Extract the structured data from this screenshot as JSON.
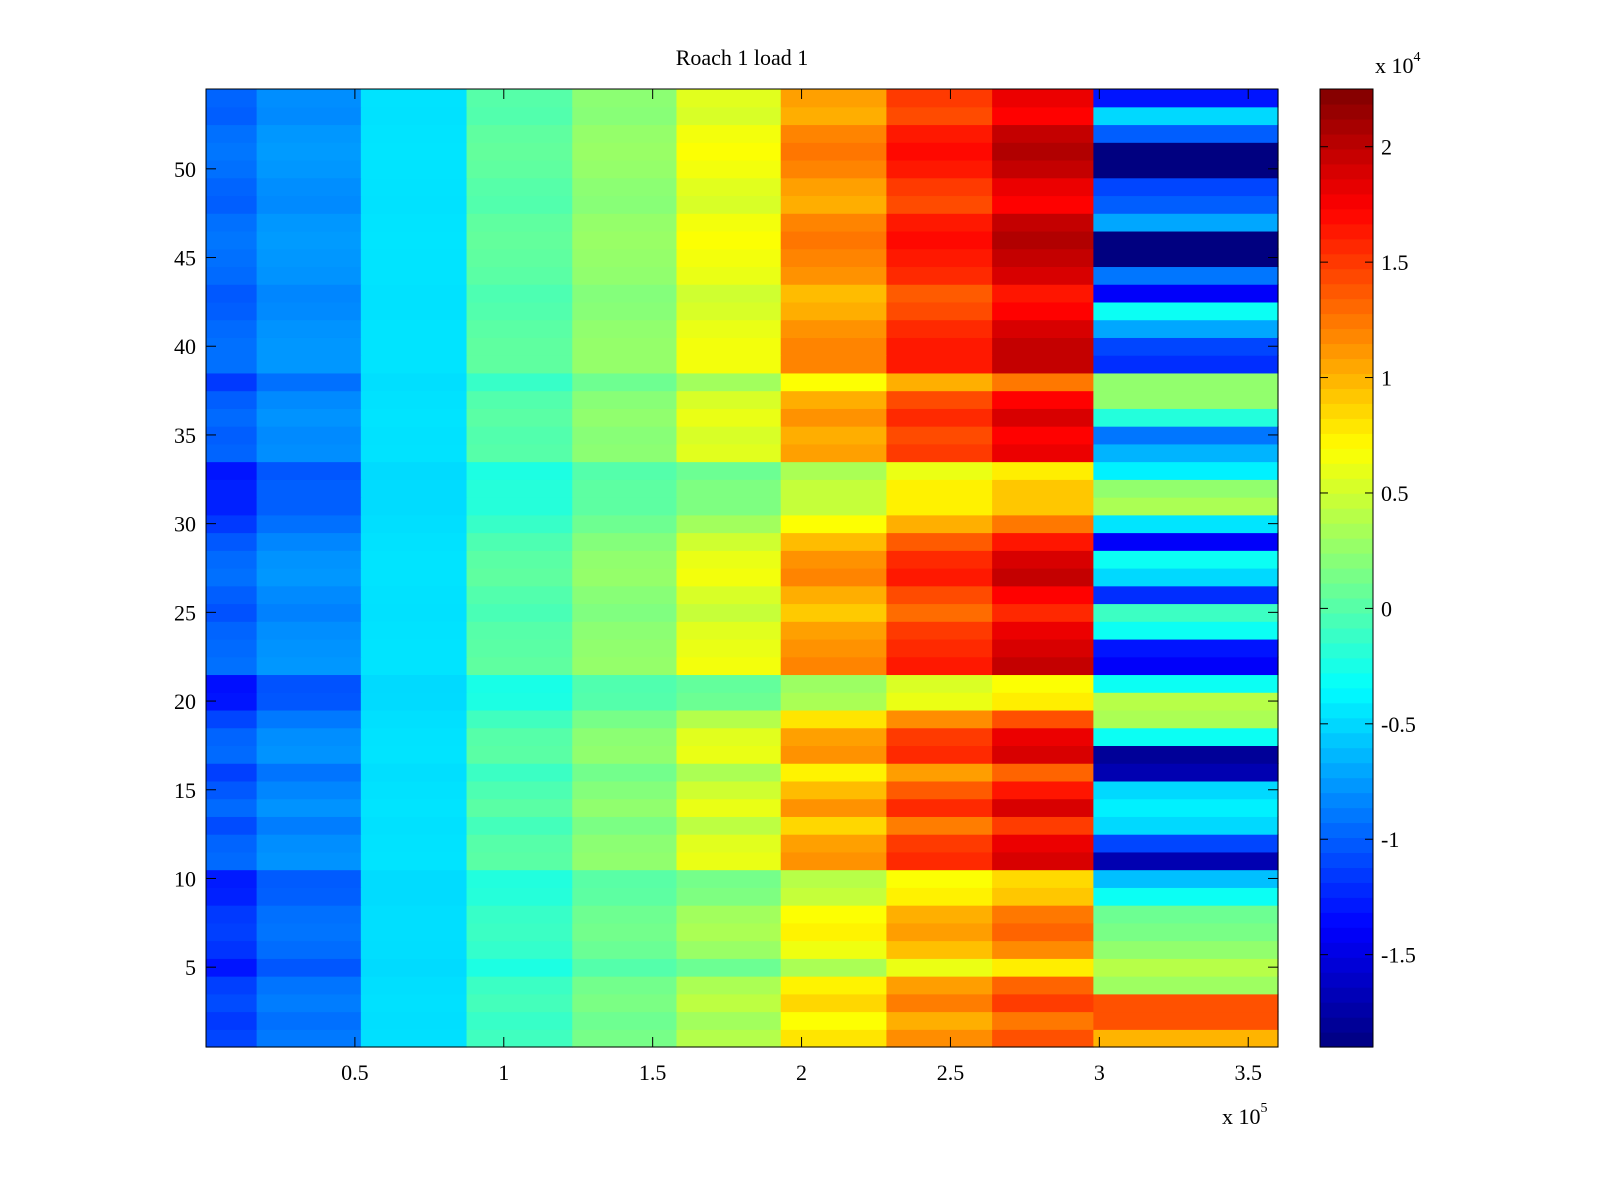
{
  "chart_data": {
    "type": "heatmap",
    "title": "Roach 1 load 1",
    "xlabel": "",
    "ylabel": "",
    "x_multiplier": {
      "base": "x 10",
      "exponent": "5"
    },
    "xlim": [
      0,
      360000
    ],
    "ylim": [
      0.5,
      54.5
    ],
    "x_ticks": [
      50000,
      100000,
      150000,
      200000,
      250000,
      300000,
      350000
    ],
    "x_tick_labels": [
      "0.5",
      "1",
      "1.5",
      "2",
      "2.5",
      "3",
      "3.5"
    ],
    "y_ticks": [
      5,
      10,
      15,
      20,
      25,
      30,
      35,
      40,
      45,
      50
    ],
    "y_tick_labels": [
      "5",
      "10",
      "15",
      "20",
      "25",
      "30",
      "35",
      "40",
      "45",
      "50"
    ],
    "colormap": "jet",
    "colorbar": {
      "clim": [
        -19000,
        22500
      ],
      "multiplier": {
        "base": "x 10",
        "exponent": "4"
      },
      "ticks": [
        -15000,
        -10000,
        -5000,
        0,
        5000,
        10000,
        15000,
        20000
      ],
      "tick_labels": [
        "-1.5",
        "-1",
        "-0.5",
        "0",
        "0.5",
        "1",
        "1.5",
        "2"
      ]
    },
    "x_segments": [
      {
        "x_start": 0,
        "x_end": 17000,
        "profile_index": 0
      },
      {
        "x_start": 17000,
        "x_end": 52000,
        "profile_index": 1
      },
      {
        "x_start": 52000,
        "x_end": 87500,
        "profile_index": 2
      },
      {
        "x_start": 87500,
        "x_end": 123000,
        "profile_index": 3
      },
      {
        "x_start": 123000,
        "x_end": 158000,
        "profile_index": 4
      },
      {
        "x_start": 158000,
        "x_end": 193000,
        "profile_index": 5
      },
      {
        "x_start": 193000,
        "x_end": 228500,
        "profile_index": 6
      },
      {
        "x_start": 228500,
        "x_end": 264000,
        "profile_index": 7
      },
      {
        "x_start": 264000,
        "x_end": 298000,
        "profile_index": 8
      },
      {
        "x_start": 298000,
        "x_end": 360000,
        "profile_index": 9
      }
    ],
    "row_weights": [
      0.6,
      0.5,
      0.65,
      0.55,
      0.2,
      0.45,
      0.55,
      0.5,
      0.3,
      0.25,
      0.9,
      0.85,
      0.65,
      0.9,
      0.75,
      0.55,
      0.9,
      0.85,
      0.6,
      0.2,
      0.15,
      0.95,
      0.9,
      0.85,
      0.7,
      0.8,
      0.95,
      0.9,
      0.75,
      0.5,
      0.3,
      0.3,
      0.2,
      0.85,
      0.8,
      0.9,
      0.8,
      0.5,
      0.95,
      0.95,
      0.9,
      0.8,
      0.75,
      0.9,
      0.95,
      1.0,
      0.95,
      0.8,
      0.85,
      0.95,
      1.0,
      0.95,
      0.8,
      0.85
    ],
    "value_profile_min": [
      -14000,
      -11000,
      -5000,
      -3000,
      -700,
      -500,
      1200,
      3400,
      4400,
      null
    ],
    "value_profile_max": [
      -9000,
      -7500,
      -4500,
      600,
      2800,
      6800,
      12500,
      17000,
      20500,
      null
    ],
    "last_column_values": [
      10000,
      14000,
      14000,
      3000,
      4000,
      2500,
      1500,
      1000,
      -3000,
      -6000,
      -17000,
      -11000,
      -5000,
      -4000,
      -5000,
      -17000,
      -18000,
      -3000,
      3500,
      4000,
      -3000,
      -14000,
      -13000,
      -3000,
      -1000,
      -12000,
      -5000,
      -3000,
      -14000,
      -4500,
      3500,
      2500,
      -4000,
      -6500,
      -9000,
      -2000,
      2500,
      2500,
      -12000,
      -11000,
      -7000,
      -3000,
      -14000,
      -9000,
      -19000,
      -19000,
      -7000,
      -10000,
      -11000,
      -19000,
      -19000,
      -10000,
      -5000,
      -13000
    ]
  }
}
